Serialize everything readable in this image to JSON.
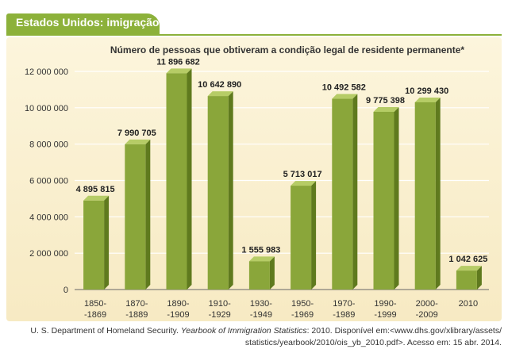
{
  "header": {
    "title": "Estados Unidos: imigração"
  },
  "chart_data": {
    "type": "bar",
    "title": "Número de pessoas que obtiveram a condição legal de residente permanente*",
    "categories": [
      [
        "1850-",
        "-1869"
      ],
      [
        "1870-",
        "-1889"
      ],
      [
        "1890-",
        "-1909"
      ],
      [
        "1910-",
        "-1929"
      ],
      [
        "1930-",
        "-1949"
      ],
      [
        "1950-",
        "-1969"
      ],
      [
        "1970-",
        "-1989"
      ],
      [
        "1990-",
        "-1999"
      ],
      [
        "2000-",
        "-2009"
      ],
      [
        "2010"
      ]
    ],
    "values": [
      4895815,
      7990705,
      11896682,
      10642890,
      1555983,
      5713017,
      10492582,
      9775398,
      10299430,
      1042625
    ],
    "value_labels": [
      "4 895 815",
      "7 990 705",
      "11 896 682",
      "10 642 890",
      "1 555 983",
      "5 713 017",
      "10 492 582",
      "9 775 398",
      "10 299 430",
      "1 042 625"
    ],
    "yticks": [
      0,
      2000000,
      4000000,
      6000000,
      8000000,
      10000000,
      12000000
    ],
    "ytick_labels": [
      "0",
      "2 000 000",
      "4 000 000",
      "6 000 000",
      "8 000 000",
      "10 000 000",
      "12 000 000"
    ],
    "ylim": [
      0,
      12000000
    ],
    "xlabel": "",
    "ylabel": "",
    "grid": true,
    "colors": {
      "bar_front": "#8aa63a",
      "bar_side": "#5f7a1e",
      "bar_top": "#b6cc66",
      "grid": "#ffffff",
      "axis": "#666666"
    }
  },
  "source": {
    "prefix": "U. S. Department of Homeland Security. ",
    "title": "Yearbook of Immigration Statistics",
    "suffix": ": 2010. Disponível em:<www.dhs.gov/xlibrary/assets/",
    "line2": "statistics/yearbook/2010/ois_yb_2010.pdf>. Acesso em: 15 abr. 2014."
  }
}
